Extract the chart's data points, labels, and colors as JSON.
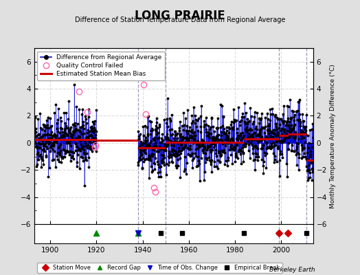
{
  "title": "LONG PRAIRIE",
  "subtitle": "Difference of Station Temperature Data from Regional Average",
  "ylabel": "Monthly Temperature Anomaly Difference (°C)",
  "credit": "Berkeley Earth",
  "xlim": [
    1893,
    2014
  ],
  "ylim": [
    -6,
    7
  ],
  "yticks": [
    -6,
    -4,
    -2,
    0,
    2,
    4,
    6
  ],
  "xticks": [
    1900,
    1920,
    1940,
    1960,
    1980,
    2000
  ],
  "bg_color": "#e0e0e0",
  "plot_bg_color": "#ffffff",
  "grid_color": "#cccccc",
  "data_segments": [
    {
      "x_start": 1893.0,
      "x_end": 1920.0,
      "bias": 0.25
    },
    {
      "x_start": 1920.0,
      "x_end": 1938.0,
      "bias": 0.2
    },
    {
      "x_start": 1938.0,
      "x_end": 1950.0,
      "bias": -0.35
    },
    {
      "x_start": 1950.0,
      "x_end": 1984.0,
      "bias": 0.05
    },
    {
      "x_start": 1984.0,
      "x_end": 1999.0,
      "bias": 0.3
    },
    {
      "x_start": 1999.0,
      "x_end": 2003.0,
      "bias": 0.55
    },
    {
      "x_start": 2003.0,
      "x_end": 2011.0,
      "bias": 0.65
    },
    {
      "x_start": 2011.0,
      "x_end": 2014.0,
      "bias": -1.3
    }
  ],
  "gap_periods": [
    [
      1920.0,
      1938.0
    ]
  ],
  "record_gaps": [
    1920,
    1938
  ],
  "station_moves": [
    1999,
    2003
  ],
  "obs_changes": [
    1938
  ],
  "empirical_breaks": [
    1948,
    1957,
    1984,
    2011
  ],
  "vertical_lines": [
    1938,
    1950,
    1999,
    2011
  ],
  "qc_failed": [
    {
      "year": 1912.5,
      "val": 3.8
    },
    {
      "year": 1916.0,
      "val": 2.3
    },
    {
      "year": 1919.3,
      "val": -0.3
    },
    {
      "year": 1919.7,
      "val": -0.15
    },
    {
      "year": 1940.5,
      "val": 4.3
    },
    {
      "year": 1941.2,
      "val": 2.1
    },
    {
      "year": 1944.8,
      "val": -3.3
    },
    {
      "year": 1945.5,
      "val": -3.6
    }
  ],
  "line_color": "#0000cc",
  "bias_color": "#cc0000",
  "qc_color": "#ff66aa",
  "seed": 42
}
